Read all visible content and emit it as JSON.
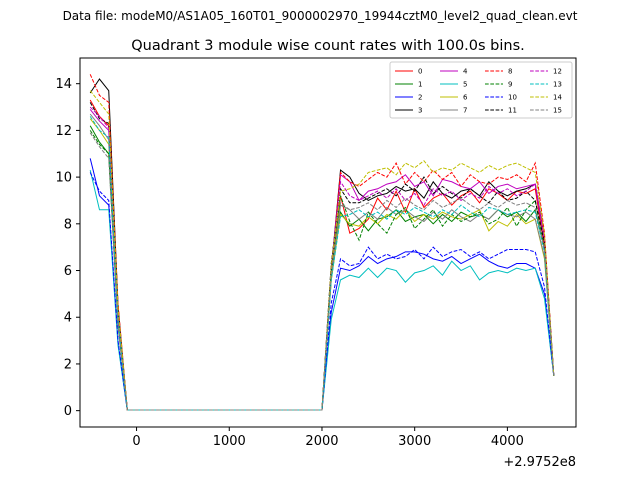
{
  "chart_data": {
    "type": "line",
    "suptitle": "Data file: modeM0/AS1A05_160T01_9000002970_19944cztM0_level2_quad_clean.evt",
    "title": "Quadrant 3 module wise count rates with 100.0s bins.",
    "xlabel": "",
    "ylabel": "",
    "x_offset_label": "+2.9752e8",
    "xlim": [
      -610,
      4740
    ],
    "ylim": [
      -0.7,
      15.1
    ],
    "xticks": [
      0,
      1000,
      2000,
      3000,
      4000
    ],
    "yticks": [
      0,
      2,
      4,
      6,
      8,
      10,
      12,
      14
    ],
    "grid": false,
    "legend": {
      "placement": "top-right",
      "columns": 4
    },
    "x": [
      -500,
      -400,
      -300,
      -200,
      -100,
      0,
      100,
      200,
      300,
      400,
      500,
      600,
      700,
      800,
      900,
      1000,
      1100,
      1200,
      1300,
      1400,
      1500,
      1600,
      1700,
      1800,
      1900,
      2000,
      2100,
      2200,
      2300,
      2400,
      2500,
      2600,
      2700,
      2800,
      2900,
      3000,
      3100,
      3200,
      3300,
      3400,
      3500,
      3600,
      3700,
      3800,
      3900,
      4000,
      4100,
      4200,
      4300,
      4400,
      4500
    ],
    "series": [
      {
        "name": "0",
        "color": "#ff0000",
        "dash": "solid",
        "values": [
          13.3,
          12.6,
          12.2,
          4.0,
          0.03,
          0.03,
          0.03,
          0.03,
          0.03,
          0.03,
          0.03,
          0.03,
          0.03,
          0.03,
          0.03,
          0.03,
          0.03,
          0.03,
          0.03,
          0.03,
          0.03,
          0.03,
          0.03,
          0.03,
          0.03,
          0.03,
          5.8,
          9.2,
          7.6,
          7.8,
          8.2,
          9.1,
          8.6,
          9.4,
          8.5,
          9.5,
          8.7,
          9.1,
          9.3,
          8.8,
          9.2,
          9.4,
          8.9,
          9.5,
          9.3,
          9.0,
          9.4,
          9.3,
          9.5,
          7.0,
          1.5
        ]
      },
      {
        "name": "1",
        "color": "#008000",
        "dash": "solid",
        "values": [
          12.2,
          11.5,
          11.0,
          3.7,
          0.03,
          0.03,
          0.03,
          0.03,
          0.03,
          0.03,
          0.03,
          0.03,
          0.03,
          0.03,
          0.03,
          0.03,
          0.03,
          0.03,
          0.03,
          0.03,
          0.03,
          0.03,
          0.03,
          0.03,
          0.03,
          0.03,
          5.6,
          8.5,
          7.9,
          8.2,
          7.7,
          8.2,
          8.3,
          8.6,
          8.1,
          8.3,
          8.4,
          8.0,
          8.4,
          8.1,
          8.5,
          8.3,
          8.4,
          8.2,
          8.6,
          8.3,
          8.5,
          8.1,
          8.6,
          6.9,
          1.5
        ]
      },
      {
        "name": "2",
        "color": "#0000ff",
        "dash": "solid",
        "values": [
          10.8,
          9.2,
          8.8,
          2.9,
          0.03,
          0.03,
          0.03,
          0.03,
          0.03,
          0.03,
          0.03,
          0.03,
          0.03,
          0.03,
          0.03,
          0.03,
          0.03,
          0.03,
          0.03,
          0.03,
          0.03,
          0.03,
          0.03,
          0.03,
          0.03,
          0.03,
          4.2,
          6.1,
          6.0,
          6.2,
          6.6,
          6.3,
          6.5,
          6.6,
          6.8,
          6.8,
          6.7,
          6.5,
          6.4,
          6.6,
          6.3,
          6.5,
          6.7,
          6.4,
          6.2,
          6.1,
          6.3,
          6.3,
          6.1,
          5.0,
          1.5
        ]
      },
      {
        "name": "3",
        "color": "#000000",
        "dash": "solid",
        "values": [
          13.6,
          14.2,
          13.7,
          4.5,
          0.03,
          0.03,
          0.03,
          0.03,
          0.03,
          0.03,
          0.03,
          0.03,
          0.03,
          0.03,
          0.03,
          0.03,
          0.03,
          0.03,
          0.03,
          0.03,
          0.03,
          0.03,
          0.03,
          0.03,
          0.03,
          0.03,
          6.0,
          10.3,
          10.0,
          9.3,
          9.0,
          9.2,
          9.3,
          9.6,
          9.4,
          9.5,
          9.1,
          9.8,
          9.3,
          9.1,
          9.4,
          9.5,
          9.2,
          9.8,
          9.4,
          9.2,
          9.4,
          9.5,
          9.7,
          7.4,
          1.5
        ]
      },
      {
        "name": "4",
        "color": "#bf00bf",
        "dash": "solid",
        "values": [
          12.9,
          12.4,
          12.0,
          4.1,
          0.03,
          0.03,
          0.03,
          0.03,
          0.03,
          0.03,
          0.03,
          0.03,
          0.03,
          0.03,
          0.03,
          0.03,
          0.03,
          0.03,
          0.03,
          0.03,
          0.03,
          0.03,
          0.03,
          0.03,
          0.03,
          0.03,
          6.0,
          10.1,
          9.8,
          9.0,
          9.4,
          9.5,
          9.7,
          9.8,
          10.1,
          9.6,
          9.8,
          9.2,
          9.9,
          9.8,
          9.6,
          9.5,
          9.8,
          9.3,
          9.6,
          9.7,
          9.5,
          9.6,
          9.7,
          7.3,
          1.5
        ]
      },
      {
        "name": "5",
        "color": "#00bfbf",
        "dash": "solid",
        "values": [
          10.3,
          8.6,
          8.6,
          2.8,
          0.03,
          0.03,
          0.03,
          0.03,
          0.03,
          0.03,
          0.03,
          0.03,
          0.03,
          0.03,
          0.03,
          0.03,
          0.03,
          0.03,
          0.03,
          0.03,
          0.03,
          0.03,
          0.03,
          0.03,
          0.03,
          0.03,
          3.9,
          5.6,
          5.8,
          5.7,
          6.1,
          5.7,
          6.1,
          6.0,
          5.5,
          5.9,
          6.0,
          6.2,
          5.8,
          6.4,
          6.0,
          6.2,
          5.6,
          5.9,
          6.0,
          5.9,
          6.1,
          6.0,
          6.1,
          4.8,
          1.5
        ]
      },
      {
        "name": "6",
        "color": "#bfbf00",
        "dash": "solid",
        "values": [
          12.5,
          12.0,
          11.4,
          3.8,
          0.03,
          0.03,
          0.03,
          0.03,
          0.03,
          0.03,
          0.03,
          0.03,
          0.03,
          0.03,
          0.03,
          0.03,
          0.03,
          0.03,
          0.03,
          0.03,
          0.03,
          0.03,
          0.03,
          0.03,
          0.03,
          0.03,
          5.6,
          8.4,
          8.0,
          7.9,
          8.3,
          8.0,
          8.4,
          8.2,
          8.6,
          8.1,
          8.4,
          8.2,
          8.5,
          8.3,
          8.2,
          8.4,
          8.6,
          7.7,
          8.1,
          7.9,
          8.4,
          8.0,
          8.2,
          6.5,
          1.5
        ]
      },
      {
        "name": "7",
        "color": "#808080",
        "dash": "solid",
        "values": [
          12.7,
          12.2,
          11.6,
          3.9,
          0.03,
          0.03,
          0.03,
          0.03,
          0.03,
          0.03,
          0.03,
          0.03,
          0.03,
          0.03,
          0.03,
          0.03,
          0.03,
          0.03,
          0.03,
          0.03,
          0.03,
          0.03,
          0.03,
          0.03,
          0.03,
          0.03,
          5.7,
          8.8,
          8.6,
          8.2,
          8.5,
          8.2,
          8.7,
          8.4,
          8.6,
          8.3,
          8.1,
          8.5,
          8.2,
          8.6,
          8.3,
          8.1,
          8.4,
          8.2,
          8.6,
          8.4,
          8.3,
          8.5,
          8.2,
          6.6,
          1.5
        ]
      },
      {
        "name": "8",
        "color": "#ff0000",
        "dash": "dashed",
        "values": [
          14.4,
          13.5,
          13.2,
          4.6,
          0.03,
          0.03,
          0.03,
          0.03,
          0.03,
          0.03,
          0.03,
          0.03,
          0.03,
          0.03,
          0.03,
          0.03,
          0.03,
          0.03,
          0.03,
          0.03,
          0.03,
          0.03,
          0.03,
          0.03,
          0.03,
          0.03,
          6.0,
          10.2,
          9.8,
          9.6,
          9.9,
          10.2,
          10.0,
          10.6,
          9.7,
          10.2,
          9.8,
          10.3,
          9.9,
          10.2,
          9.6,
          10.1,
          9.8,
          9.7,
          10.0,
          9.9,
          10.1,
          9.8,
          10.6,
          7.6,
          1.5
        ]
      },
      {
        "name": "9",
        "color": "#008000",
        "dash": "dashed",
        "values": [
          12.0,
          11.4,
          11.0,
          3.7,
          0.03,
          0.03,
          0.03,
          0.03,
          0.03,
          0.03,
          0.03,
          0.03,
          0.03,
          0.03,
          0.03,
          0.03,
          0.03,
          0.03,
          0.03,
          0.03,
          0.03,
          0.03,
          0.03,
          0.03,
          0.03,
          0.03,
          5.9,
          9.2,
          8.1,
          7.3,
          8.5,
          8.0,
          7.6,
          8.4,
          8.7,
          7.8,
          8.2,
          8.6,
          7.9,
          8.4,
          8.1,
          8.3,
          8.5,
          8.0,
          8.2,
          8.7,
          7.9,
          8.6,
          9.0,
          6.9,
          1.5
        ]
      },
      {
        "name": "10",
        "color": "#0000ff",
        "dash": "dashed",
        "values": [
          10.2,
          9.4,
          9.0,
          3.0,
          0.03,
          0.03,
          0.03,
          0.03,
          0.03,
          0.03,
          0.03,
          0.03,
          0.03,
          0.03,
          0.03,
          0.03,
          0.03,
          0.03,
          0.03,
          0.03,
          0.03,
          0.03,
          0.03,
          0.03,
          0.03,
          0.03,
          4.6,
          6.5,
          6.2,
          6.3,
          7.0,
          6.5,
          6.7,
          6.5,
          6.6,
          6.9,
          6.5,
          7.0,
          6.6,
          6.8,
          6.9,
          6.6,
          6.8,
          6.5,
          6.7,
          6.9,
          6.9,
          6.9,
          6.8,
          5.3,
          1.5
        ]
      },
      {
        "name": "11",
        "color": "#000000",
        "dash": "dashed",
        "values": [
          13.2,
          12.5,
          12.3,
          4.2,
          0.03,
          0.03,
          0.03,
          0.03,
          0.03,
          0.03,
          0.03,
          0.03,
          0.03,
          0.03,
          0.03,
          0.03,
          0.03,
          0.03,
          0.03,
          0.03,
          0.03,
          0.03,
          0.03,
          0.03,
          0.03,
          0.03,
          6.3,
          9.5,
          8.9,
          8.9,
          9.1,
          9.3,
          9.5,
          9.2,
          9.7,
          9.4,
          10.0,
          9.3,
          9.6,
          9.3,
          9.1,
          9.5,
          9.2,
          8.9,
          9.4,
          9.0,
          9.1,
          9.4,
          9.0,
          7.2,
          1.5
        ]
      },
      {
        "name": "12",
        "color": "#bf00bf",
        "dash": "dashed",
        "values": [
          13.0,
          12.6,
          12.1,
          4.1,
          0.03,
          0.03,
          0.03,
          0.03,
          0.03,
          0.03,
          0.03,
          0.03,
          0.03,
          0.03,
          0.03,
          0.03,
          0.03,
          0.03,
          0.03,
          0.03,
          0.03,
          0.03,
          0.03,
          0.03,
          0.03,
          0.03,
          6.1,
          9.8,
          9.2,
          9.0,
          9.2,
          9.4,
          9.1,
          9.5,
          9.0,
          9.3,
          8.8,
          9.5,
          9.2,
          9.4,
          9.0,
          9.3,
          9.1,
          9.6,
          9.3,
          9.5,
          9.2,
          9.4,
          9.7,
          7.3,
          1.5
        ]
      },
      {
        "name": "13",
        "color": "#00bfbf",
        "dash": "dashed",
        "values": [
          12.6,
          12.0,
          11.7,
          3.9,
          0.03,
          0.03,
          0.03,
          0.03,
          0.03,
          0.03,
          0.03,
          0.03,
          0.03,
          0.03,
          0.03,
          0.03,
          0.03,
          0.03,
          0.03,
          0.03,
          0.03,
          0.03,
          0.03,
          0.03,
          0.03,
          0.03,
          5.6,
          8.3,
          8.4,
          8.6,
          8.3,
          8.5,
          8.2,
          8.6,
          8.4,
          8.7,
          8.5,
          8.3,
          8.6,
          8.4,
          8.8,
          8.5,
          8.3,
          8.7,
          8.6,
          8.4,
          8.5,
          8.6,
          8.5,
          6.8,
          1.5
        ]
      },
      {
        "name": "14",
        "color": "#bfbf00",
        "dash": "dashed",
        "values": [
          13.7,
          13.2,
          12.7,
          4.4,
          0.03,
          0.03,
          0.03,
          0.03,
          0.03,
          0.03,
          0.03,
          0.03,
          0.03,
          0.03,
          0.03,
          0.03,
          0.03,
          0.03,
          0.03,
          0.03,
          0.03,
          0.03,
          0.03,
          0.03,
          0.03,
          0.03,
          6.2,
          9.4,
          9.5,
          9.7,
          10.2,
          10.3,
          10.4,
          10.1,
          10.6,
          10.4,
          10.7,
          10.2,
          10.4,
          10.3,
          10.6,
          10.4,
          10.2,
          10.5,
          10.3,
          10.5,
          10.6,
          10.4,
          10.2,
          7.5,
          1.5
        ]
      },
      {
        "name": "15",
        "color": "#808080",
        "dash": "dashed",
        "values": [
          11.9,
          11.3,
          10.8,
          3.6,
          0.03,
          0.03,
          0.03,
          0.03,
          0.03,
          0.03,
          0.03,
          0.03,
          0.03,
          0.03,
          0.03,
          0.03,
          0.03,
          0.03,
          0.03,
          0.03,
          0.03,
          0.03,
          0.03,
          0.03,
          0.03,
          0.03,
          5.8,
          8.9,
          8.6,
          8.7,
          8.9,
          8.6,
          9.0,
          8.7,
          9.1,
          8.8,
          8.6,
          9.0,
          8.7,
          8.9,
          9.1,
          8.8,
          8.6,
          8.9,
          8.7,
          9.0,
          8.8,
          8.9,
          8.7,
          6.9,
          1.5
        ]
      }
    ]
  }
}
